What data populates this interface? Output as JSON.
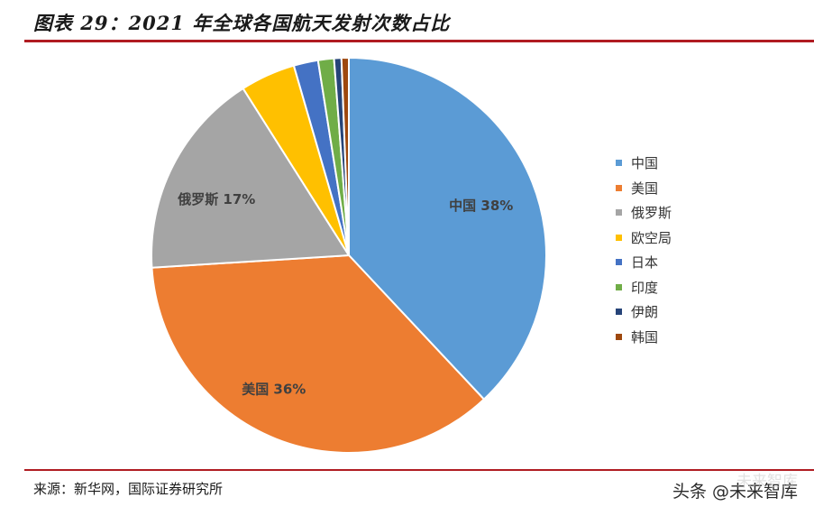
{
  "header": {
    "title": "图表 29：2021 年全球各国航天发射次数占比"
  },
  "footer": {
    "source": "来源：新华网，国际证券研究所"
  },
  "watermark": {
    "text": "头条 @未来智库",
    "ghost_text": "未来智库"
  },
  "chart_data": {
    "type": "pie",
    "title": "",
    "start_angle_deg": 0,
    "direction": "clockwise",
    "slices": [
      {
        "label": "中国",
        "value": 38,
        "color": "#5B9BD5",
        "data_label": "中国 38%"
      },
      {
        "label": "美国",
        "value": 36,
        "color": "#ED7D31",
        "data_label": "美国 36%"
      },
      {
        "label": "俄罗斯",
        "value": 17,
        "color": "#A5A5A5",
        "data_label": "俄罗斯 17%"
      },
      {
        "label": "欧空局",
        "value": 4.5,
        "color": "#FFC000",
        "data_label": ""
      },
      {
        "label": "日本",
        "value": 2,
        "color": "#4472C4",
        "data_label": ""
      },
      {
        "label": "印度",
        "value": 1.3,
        "color": "#70AD47",
        "data_label": ""
      },
      {
        "label": "伊朗",
        "value": 0.6,
        "color": "#264478",
        "data_label": ""
      },
      {
        "label": "韩国",
        "value": 0.6,
        "color": "#9E480E",
        "data_label": ""
      }
    ],
    "legend_position": "right"
  }
}
